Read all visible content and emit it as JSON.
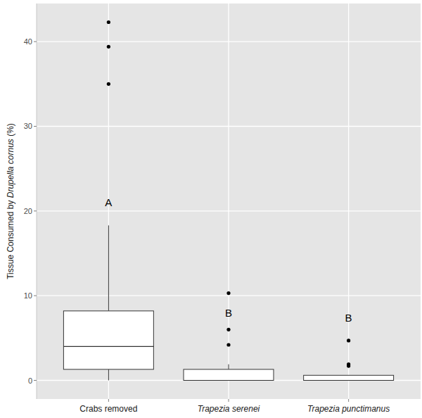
{
  "chart_data": {
    "type": "box",
    "y_label": "Tissue Consumed by Drupella cornus (%)",
    "categories": [
      "Crabs removed",
      "Trapezia serenei",
      "Trapezia punctimanus"
    ],
    "boxes": [
      {
        "min": 0,
        "q1": 1.3,
        "median": 4.0,
        "q3": 8.2,
        "max": 18.3,
        "outliers": [
          35.0,
          39.4,
          42.3
        ]
      },
      {
        "min": 0,
        "q1": 0,
        "median": 0,
        "q3": 1.3,
        "max": 1.9,
        "outliers": [
          4.2,
          6.0,
          10.3
        ]
      },
      {
        "min": 0,
        "q1": 0,
        "median": 0,
        "q3": 0.6,
        "max": 0.6,
        "outliers": [
          1.7,
          1.9,
          4.7
        ]
      }
    ],
    "annotations": [
      {
        "text": "A",
        "category": 0,
        "y": 21
      },
      {
        "text": "B",
        "category": 1,
        "y": 8
      },
      {
        "text": "B",
        "category": 2,
        "y": 7.4
      }
    ],
    "ylim": [
      -2.2,
      44.5
    ],
    "yticks": [
      0,
      10,
      20,
      30,
      40
    ],
    "grid": true,
    "color": "#ffffff"
  }
}
